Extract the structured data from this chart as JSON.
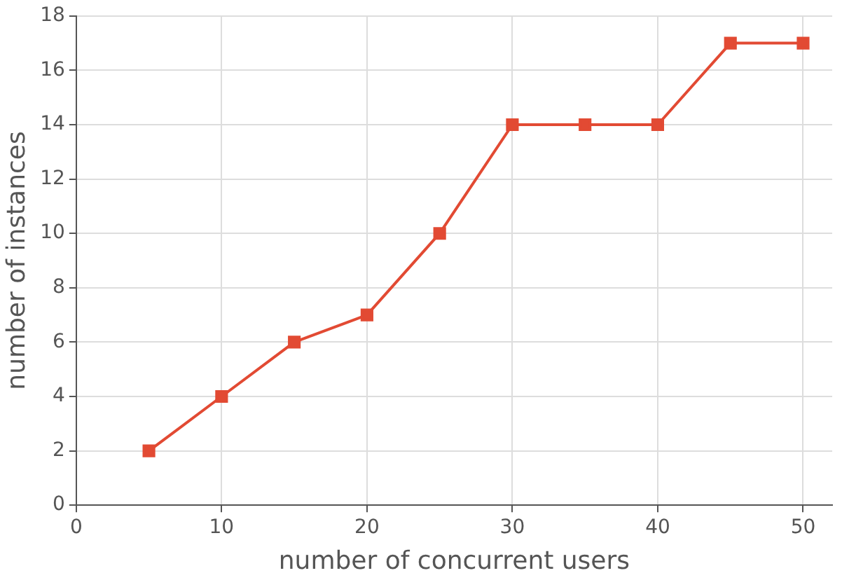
{
  "chart_data": {
    "type": "line",
    "xlabel": "number of concurrent users",
    "ylabel": "number of instances",
    "x": [
      5,
      10,
      15,
      20,
      25,
      30,
      35,
      40,
      45,
      50
    ],
    "series": [
      {
        "color": "#e24a33",
        "values": [
          2,
          4,
          6,
          7,
          10,
          14,
          14,
          14,
          17,
          17
        ]
      }
    ],
    "xlim": [
      0,
      52
    ],
    "xticks": [
      0,
      10,
      20,
      30,
      40,
      50
    ],
    "ylim": [
      0,
      18
    ],
    "yticks": [
      0,
      2,
      4,
      6,
      8,
      10,
      12,
      14,
      16,
      18
    ],
    "grid": true,
    "legend": false,
    "marker": "square",
    "line_style": "solid"
  }
}
